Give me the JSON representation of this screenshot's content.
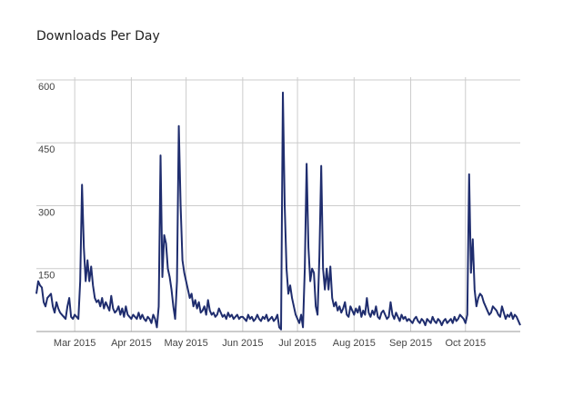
{
  "chart_data": {
    "type": "line",
    "title": "Downloads Per Day",
    "categories": [
      null,
      null,
      null,
      null,
      null,
      null,
      null,
      null,
      null,
      null,
      null,
      null,
      null,
      null,
      null,
      null,
      null,
      null,
      null,
      null,
      null,
      "Mar 2015",
      null,
      null,
      null,
      null,
      null,
      null,
      null,
      null,
      null,
      null,
      null,
      null,
      null,
      null,
      null,
      null,
      null,
      null,
      null,
      null,
      null,
      null,
      null,
      null,
      null,
      null,
      null,
      null,
      null,
      null,
      "Apr 2015",
      null,
      null,
      null,
      null,
      null,
      null,
      null,
      null,
      null,
      null,
      null,
      null,
      null,
      null,
      null,
      null,
      null,
      null,
      null,
      null,
      null,
      null,
      null,
      null,
      null,
      null,
      null,
      null,
      null,
      "May 2015",
      null,
      null,
      null,
      null,
      null,
      null,
      null,
      null,
      null,
      null,
      null,
      null,
      null,
      null,
      null,
      null,
      null,
      null,
      null,
      null,
      null,
      null,
      null,
      null,
      null,
      null,
      null,
      null,
      null,
      null,
      "Jun 2015",
      null,
      null,
      null,
      null,
      null,
      null,
      null,
      null,
      null,
      null,
      null,
      null,
      null,
      null,
      null,
      null,
      null,
      null,
      null,
      null,
      null,
      null,
      null,
      null,
      null,
      null,
      null,
      null,
      null,
      "Jul 2015",
      null,
      null,
      null,
      null,
      null,
      null,
      null,
      null,
      null,
      null,
      null,
      null,
      null,
      null,
      null,
      null,
      null,
      null,
      null,
      null,
      null,
      null,
      null,
      null,
      null,
      null,
      null,
      null,
      null,
      null,
      "Aug 2015",
      null,
      null,
      null,
      null,
      null,
      null,
      null,
      null,
      null,
      null,
      null,
      null,
      null,
      null,
      null,
      null,
      null,
      null,
      null,
      null,
      null,
      null,
      null,
      null,
      null,
      null,
      null,
      null,
      null,
      null,
      "Sep 2015",
      null,
      null,
      null,
      null,
      null,
      null,
      null,
      null,
      null,
      null,
      null,
      null,
      null,
      null,
      null,
      null,
      null,
      null,
      null,
      null,
      null,
      null,
      null,
      null,
      null,
      null,
      null,
      null,
      null,
      "Oct 2015",
      null,
      null,
      null,
      null,
      null,
      null,
      null,
      null,
      null,
      null,
      null,
      null,
      null,
      null,
      null,
      null,
      null,
      null,
      null,
      null,
      null,
      null,
      null,
      null,
      null,
      null,
      null,
      null,
      null,
      null
    ],
    "values": [
      90,
      120,
      110,
      105,
      70,
      60,
      80,
      85,
      90,
      60,
      45,
      70,
      55,
      45,
      40,
      35,
      30,
      60,
      80,
      35,
      30,
      40,
      35,
      30,
      120,
      350,
      200,
      120,
      170,
      120,
      155,
      110,
      80,
      70,
      75,
      60,
      80,
      55,
      70,
      60,
      50,
      85,
      55,
      45,
      50,
      60,
      40,
      55,
      35,
      60,
      40,
      35,
      30,
      40,
      35,
      30,
      45,
      30,
      40,
      30,
      25,
      35,
      30,
      20,
      40,
      30,
      10,
      60,
      420,
      130,
      230,
      210,
      150,
      130,
      100,
      60,
      30,
      120,
      490,
      300,
      170,
      140,
      120,
      100,
      80,
      90,
      60,
      75,
      55,
      70,
      45,
      50,
      60,
      40,
      75,
      50,
      40,
      45,
      35,
      40,
      55,
      45,
      35,
      40,
      30,
      45,
      35,
      40,
      30,
      35,
      40,
      30,
      35,
      35,
      30,
      25,
      40,
      30,
      35,
      25,
      30,
      40,
      30,
      25,
      35,
      30,
      40,
      25,
      30,
      35,
      25,
      30,
      40,
      10,
      5,
      570,
      300,
      150,
      90,
      110,
      80,
      60,
      40,
      30,
      20,
      40,
      10,
      150,
      400,
      200,
      120,
      150,
      140,
      60,
      40,
      180,
      395,
      150,
      100,
      150,
      100,
      155,
      80,
      60,
      70,
      50,
      60,
      45,
      55,
      70,
      40,
      35,
      60,
      50,
      40,
      55,
      45,
      60,
      35,
      50,
      40,
      80,
      45,
      35,
      50,
      40,
      60,
      35,
      30,
      45,
      50,
      40,
      30,
      35,
      70,
      40,
      30,
      45,
      35,
      25,
      40,
      30,
      35,
      25,
      30,
      25,
      20,
      30,
      35,
      25,
      20,
      30,
      25,
      15,
      30,
      25,
      20,
      35,
      25,
      20,
      30,
      25,
      15,
      25,
      30,
      20,
      25,
      30,
      20,
      35,
      25,
      30,
      40,
      35,
      30,
      20,
      40,
      375,
      140,
      220,
      100,
      60,
      80,
      90,
      85,
      70,
      60,
      50,
      40,
      45,
      60,
      55,
      50,
      40,
      35,
      60,
      45,
      30,
      40,
      35,
      45,
      30,
      40,
      35,
      25,
      15
    ],
    "color": "#1f2d6e",
    "ylim": [
      0,
      600
    ],
    "yticks": [
      150,
      300,
      450,
      600
    ],
    "grid": true
  }
}
